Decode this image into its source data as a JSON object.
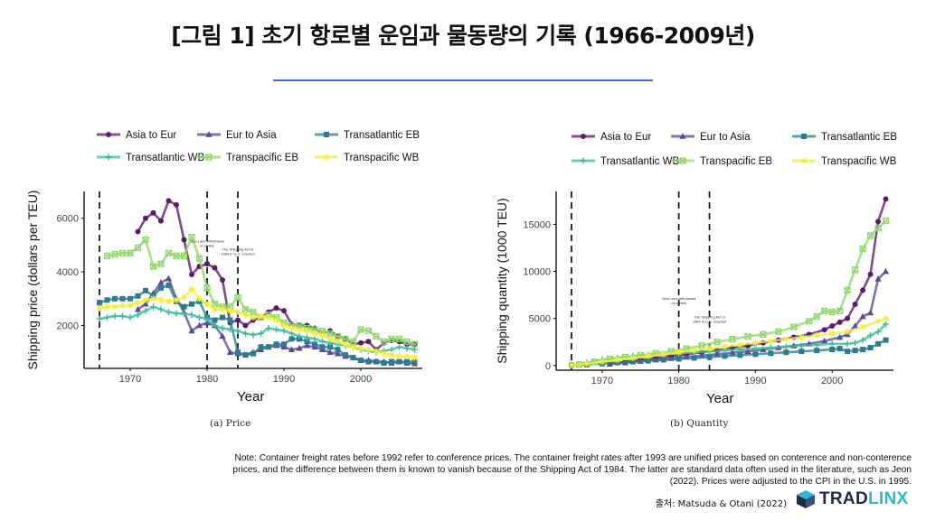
{
  "title": "[그림 1] 초기 항로별 운임과 물동량의 기록 (1966-2009년)",
  "colors": {
    "asia_to_eur": "#5b1a6b",
    "eur_to_asia": "#5a4a9a",
    "transatlantic_eb": "#2b7c8e",
    "transatlantic_wb": "#3bbf9a",
    "transpacific_eb": "#8fd86a",
    "transpacific_wb": "#f4ee3a",
    "accent_rule": "#3b6fe0"
  },
  "chart_data": [
    {
      "type": "line",
      "caption": "(a) Price",
      "xlabel": "Year",
      "ylabel": "Shipping price (dollars per TEU)",
      "xlim": [
        1964,
        2008
      ],
      "ylim": [
        400,
        7000
      ],
      "xticks": [
        1970,
        1980,
        1990,
        2000
      ],
      "yticks": [
        2000,
        4000,
        6000
      ],
      "vlines": [
        1966,
        1980,
        1984
      ],
      "annotations": [
        {
          "text": "Sea-Land withdrawal of cartels",
          "x": 1980,
          "y": 5100
        },
        {
          "text": "The Shipping Act of 1984 in U.S. enacted",
          "x": 1984,
          "y": 4800
        }
      ],
      "legend": {
        "position": "top",
        "entries": [
          "Asia to Eur",
          "Eur to Asia",
          "Transatlantic EB",
          "Transatlantic WB",
          "Transpacific EB",
          "Transpacific WB"
        ]
      },
      "series": [
        {
          "name": "Asia to Eur",
          "marker": "circle",
          "color": "#5b1a6b",
          "x": [
            1971,
            1972,
            1973,
            1974,
            1975,
            1976,
            1977,
            1978,
            1979,
            1980,
            1981,
            1982,
            1983,
            1984,
            1985,
            1986,
            1987,
            1988,
            1989,
            1990,
            1991,
            1992,
            1993,
            1994,
            1995,
            1996,
            1997,
            1998,
            1999,
            2000,
            2001,
            2002,
            2003,
            2004,
            2005,
            2006,
            2007
          ],
          "values": [
            5500,
            6000,
            6200,
            5900,
            6650,
            6500,
            5200,
            3900,
            4200,
            4300,
            4150,
            3700,
            2100,
            2200,
            2000,
            2200,
            2300,
            2500,
            2650,
            2550,
            2050,
            2000,
            2000,
            1900,
            1700,
            1800,
            1600,
            1500,
            1300,
            1350,
            1400,
            1100,
            1350,
            1450,
            1400,
            1300,
            1300
          ]
        },
        {
          "name": "Eur to Asia",
          "marker": "triangle",
          "color": "#5a4a9a",
          "x": [
            1971,
            1972,
            1973,
            1974,
            1975,
            1976,
            1977,
            1978,
            1979,
            1980,
            1981,
            1982,
            1983,
            1984,
            1985,
            1986,
            1987,
            1988,
            1989,
            1990,
            1991,
            1992,
            1993,
            1994,
            1995,
            1996,
            1997,
            1998,
            1999,
            2000,
            2001,
            2002,
            2003,
            2004,
            2005,
            2006,
            2007
          ],
          "values": [
            2600,
            2800,
            3200,
            3600,
            3750,
            3000,
            2500,
            1800,
            2000,
            2100,
            2000,
            1600,
            1000,
            950,
            900,
            1000,
            1100,
            1200,
            1250,
            1200,
            1100,
            1150,
            1250,
            1200,
            1100,
            1000,
            950,
            850,
            800,
            700,
            700,
            650,
            650,
            600,
            650,
            600,
            580
          ]
        },
        {
          "name": "Transatlantic EB",
          "marker": "square",
          "color": "#2b7c8e",
          "x": [
            1966,
            1967,
            1968,
            1969,
            1970,
            1971,
            1972,
            1973,
            1974,
            1975,
            1976,
            1977,
            1978,
            1979,
            1980,
            1981,
            1982,
            1983,
            1984,
            1985,
            1986,
            1987,
            1988,
            1989,
            1990,
            1991,
            1992,
            1993,
            1994,
            1995,
            1996,
            1997,
            1998,
            1999,
            2000,
            2001,
            2002,
            2003,
            2004,
            2005,
            2006,
            2007
          ],
          "values": [
            2850,
            2950,
            3000,
            3000,
            3000,
            3100,
            3300,
            3100,
            3400,
            3500,
            2900,
            2700,
            2800,
            2900,
            2300,
            2200,
            2300,
            2200,
            1000,
            900,
            950,
            1200,
            1200,
            1300,
            1300,
            1500,
            1500,
            1400,
            1300,
            1200,
            1200,
            1100,
            900,
            800,
            700,
            650,
            650,
            600,
            650,
            650,
            650,
            650
          ]
        },
        {
          "name": "Transatlantic WB",
          "marker": "plus",
          "color": "#3bbf9a",
          "x": [
            1966,
            1967,
            1968,
            1969,
            1970,
            1971,
            1972,
            1973,
            1974,
            1975,
            1976,
            1977,
            1978,
            1979,
            1980,
            1981,
            1982,
            1983,
            1984,
            1985,
            1986,
            1987,
            1988,
            1989,
            1990,
            1991,
            1992,
            1993,
            1994,
            1995,
            1996,
            1997,
            1998,
            1999,
            2000,
            2001,
            2002,
            2003,
            2004,
            2005,
            2006,
            2007
          ],
          "values": [
            2250,
            2300,
            2350,
            2350,
            2300,
            2400,
            2550,
            2700,
            2600,
            2500,
            2450,
            2450,
            2400,
            2300,
            2250,
            2000,
            1900,
            1850,
            1800,
            1700,
            1650,
            1700,
            1900,
            1850,
            1800,
            1700,
            1600,
            1550,
            1500,
            1400,
            1350,
            1300,
            1250,
            1200,
            1100,
            1050,
            1000,
            1050,
            1100,
            1200,
            1150,
            1100
          ]
        },
        {
          "name": "Transpacific EB",
          "marker": "square-x",
          "color": "#8fd86a",
          "x": [
            1967,
            1968,
            1969,
            1970,
            1971,
            1972,
            1973,
            1974,
            1975,
            1976,
            1977,
            1978,
            1979,
            1980,
            1981,
            1982,
            1983,
            1984,
            1985,
            1986,
            1987,
            1988,
            1989,
            1990,
            1991,
            1992,
            1993,
            1994,
            1995,
            1996,
            1997,
            1998,
            1999,
            2000,
            2001,
            2002,
            2003,
            2004,
            2005,
            2006,
            2007
          ],
          "values": [
            4600,
            4650,
            4700,
            4700,
            4900,
            5200,
            4200,
            4300,
            4700,
            4600,
            4600,
            5300,
            4500,
            3400,
            2800,
            2700,
            2700,
            3050,
            2600,
            2500,
            2300,
            2400,
            2300,
            2100,
            2000,
            2000,
            1900,
            1850,
            1800,
            1700,
            1600,
            1500,
            1400,
            1850,
            1800,
            1600,
            1400,
            1500,
            1500,
            1400,
            1300
          ]
        },
        {
          "name": "Transpacific WB",
          "marker": "star",
          "color": "#f4ee3a",
          "x": [
            1966,
            1967,
            1968,
            1969,
            1970,
            1971,
            1972,
            1973,
            1974,
            1975,
            1976,
            1977,
            1978,
            1979,
            1980,
            1981,
            1982,
            1983,
            1984,
            1985,
            1986,
            1987,
            1988,
            1989,
            1990,
            1991,
            1992,
            1993,
            1994,
            1995,
            1996,
            1997,
            1998,
            1999,
            2000,
            2001,
            2002,
            2003,
            2004,
            2005,
            2006,
            2007
          ],
          "values": [
            2650,
            2700,
            2700,
            2750,
            2750,
            2850,
            2950,
            3000,
            2950,
            2900,
            2950,
            3050,
            3350,
            3000,
            2800,
            2600,
            2600,
            2550,
            2500,
            2400,
            2300,
            2350,
            2300,
            2200,
            2000,
            1900,
            1850,
            1800,
            1700,
            1650,
            1500,
            1400,
            1300,
            1200,
            1150,
            1100,
            1050,
            950,
            900,
            850,
            850,
            800
          ]
        }
      ]
    },
    {
      "type": "line",
      "caption": "(b) Quantity",
      "xlabel": "Year",
      "ylabel": "Shipping quantity (1000 TEU)",
      "xlim": [
        1964,
        2008
      ],
      "ylim": [
        -500,
        18500
      ],
      "xticks": [
        1970,
        1980,
        1990,
        2000
      ],
      "yticks": [
        0,
        5000,
        10000,
        15000
      ],
      "vlines": [
        1966,
        1980,
        1984
      ],
      "annotations": [
        {
          "text": "Sea-Land withdrawal of cartels",
          "x": 1980,
          "y": 7000
        },
        {
          "text": "The Shipping Act of 1984 in U.S. enacted",
          "x": 1984,
          "y": 5000
        }
      ],
      "legend": {
        "position": "top",
        "entries": [
          "Asia to Eur",
          "Eur to Asia",
          "Transatlantic EB",
          "Transatlantic WB",
          "Transpacific EB",
          "Transpacific WB"
        ]
      },
      "series": [
        {
          "name": "Asia to Eur",
          "marker": "circle",
          "color": "#5b1a6b",
          "x": [
            1971,
            1973,
            1975,
            1977,
            1979,
            1981,
            1983,
            1985,
            1987,
            1989,
            1991,
            1993,
            1995,
            1997,
            1999,
            2000,
            2001,
            2002,
            2003,
            2004,
            2005,
            2006,
            2007
          ],
          "values": [
            200,
            400,
            600,
            800,
            1000,
            1200,
            1400,
            1600,
            1900,
            2100,
            2400,
            2700,
            3000,
            3300,
            3800,
            4200,
            4600,
            5000,
            6500,
            8000,
            9700,
            15300,
            17700
          ]
        },
        {
          "name": "Eur to Asia",
          "marker": "triangle",
          "color": "#5a4a9a",
          "x": [
            1971,
            1973,
            1975,
            1977,
            1979,
            1981,
            1983,
            1985,
            1987,
            1989,
            1991,
            1993,
            1995,
            1997,
            1999,
            2001,
            2002,
            2003,
            2004,
            2005,
            2006,
            2007
          ],
          "values": [
            150,
            300,
            450,
            600,
            750,
            900,
            1050,
            1200,
            1350,
            1500,
            1700,
            1900,
            2100,
            2300,
            2600,
            3000,
            3300,
            4200,
            5200,
            5600,
            9200,
            10000
          ]
        },
        {
          "name": "Transatlantic EB",
          "marker": "square",
          "color": "#2b7c8e",
          "x": [
            1966,
            1968,
            1970,
            1972,
            1974,
            1976,
            1978,
            1980,
            1982,
            1984,
            1986,
            1988,
            1990,
            1992,
            1994,
            1996,
            1998,
            2000,
            2001,
            2002,
            2003,
            2004,
            2005,
            2006,
            2007
          ],
          "values": [
            50,
            100,
            200,
            300,
            400,
            500,
            600,
            700,
            800,
            900,
            1000,
            1100,
            1200,
            1300,
            1400,
            1500,
            1600,
            1700,
            1800,
            1500,
            1600,
            1700,
            1900,
            2300,
            2700
          ]
        },
        {
          "name": "Transatlantic WB",
          "marker": "plus",
          "color": "#3bbf9a",
          "x": [
            1966,
            1968,
            1970,
            1972,
            1974,
            1976,
            1978,
            1980,
            1982,
            1984,
            1986,
            1988,
            1990,
            1992,
            1994,
            1996,
            1998,
            2000,
            2002,
            2003,
            2004,
            2005,
            2006,
            2007
          ],
          "values": [
            50,
            300,
            600,
            800,
            1000,
            1100,
            1200,
            1300,
            1400,
            1500,
            1600,
            1700,
            1800,
            1900,
            2000,
            2100,
            2200,
            2300,
            2300,
            2400,
            2700,
            3200,
            3600,
            4400
          ]
        },
        {
          "name": "Transpacific EB",
          "marker": "square-x",
          "color": "#8fd86a",
          "x": [
            1967,
            1969,
            1971,
            1973,
            1975,
            1977,
            1979,
            1981,
            1983,
            1985,
            1987,
            1989,
            1991,
            1993,
            1995,
            1997,
            1998,
            1999,
            2000,
            2001,
            2002,
            2003,
            2004,
            2005,
            2006,
            2007
          ],
          "values": [
            100,
            400,
            700,
            900,
            1100,
            1300,
            1500,
            1800,
            2100,
            2500,
            2800,
            3100,
            3300,
            3600,
            4100,
            4700,
            5200,
            5800,
            5700,
            5800,
            8000,
            10200,
            12400,
            13800,
            14600,
            15400
          ]
        },
        {
          "name": "Transpacific WB",
          "marker": "star",
          "color": "#f4ee3a",
          "x": [
            1966,
            1968,
            1970,
            1972,
            1974,
            1976,
            1978,
            1980,
            1982,
            1984,
            1986,
            1988,
            1990,
            1992,
            1994,
            1996,
            1998,
            2000,
            2002,
            2004,
            2006,
            2007
          ],
          "values": [
            50,
            200,
            400,
            600,
            800,
            1000,
            1200,
            1400,
            1600,
            1800,
            2000,
            2200,
            2400,
            2600,
            2800,
            3000,
            3200,
            3400,
            3600,
            4100,
            4700,
            5000
          ]
        }
      ]
    }
  ],
  "note": "Note: Container freight rates before 1992 refer to conference prices. The container freight rates after 1993 are unified prices based on conterence and non-conterence prices, and the difference between them is known to vanish because of the Shipping Act of 1984. The latter are standard data often used in the literature, such as Jeon (2022). Prices were adjusted to the CPI in the U.S. in 1995.",
  "source": "출처: Matsuda & Otani (2022)",
  "logo": {
    "part1": "TRAD",
    "part2": "LINX"
  }
}
